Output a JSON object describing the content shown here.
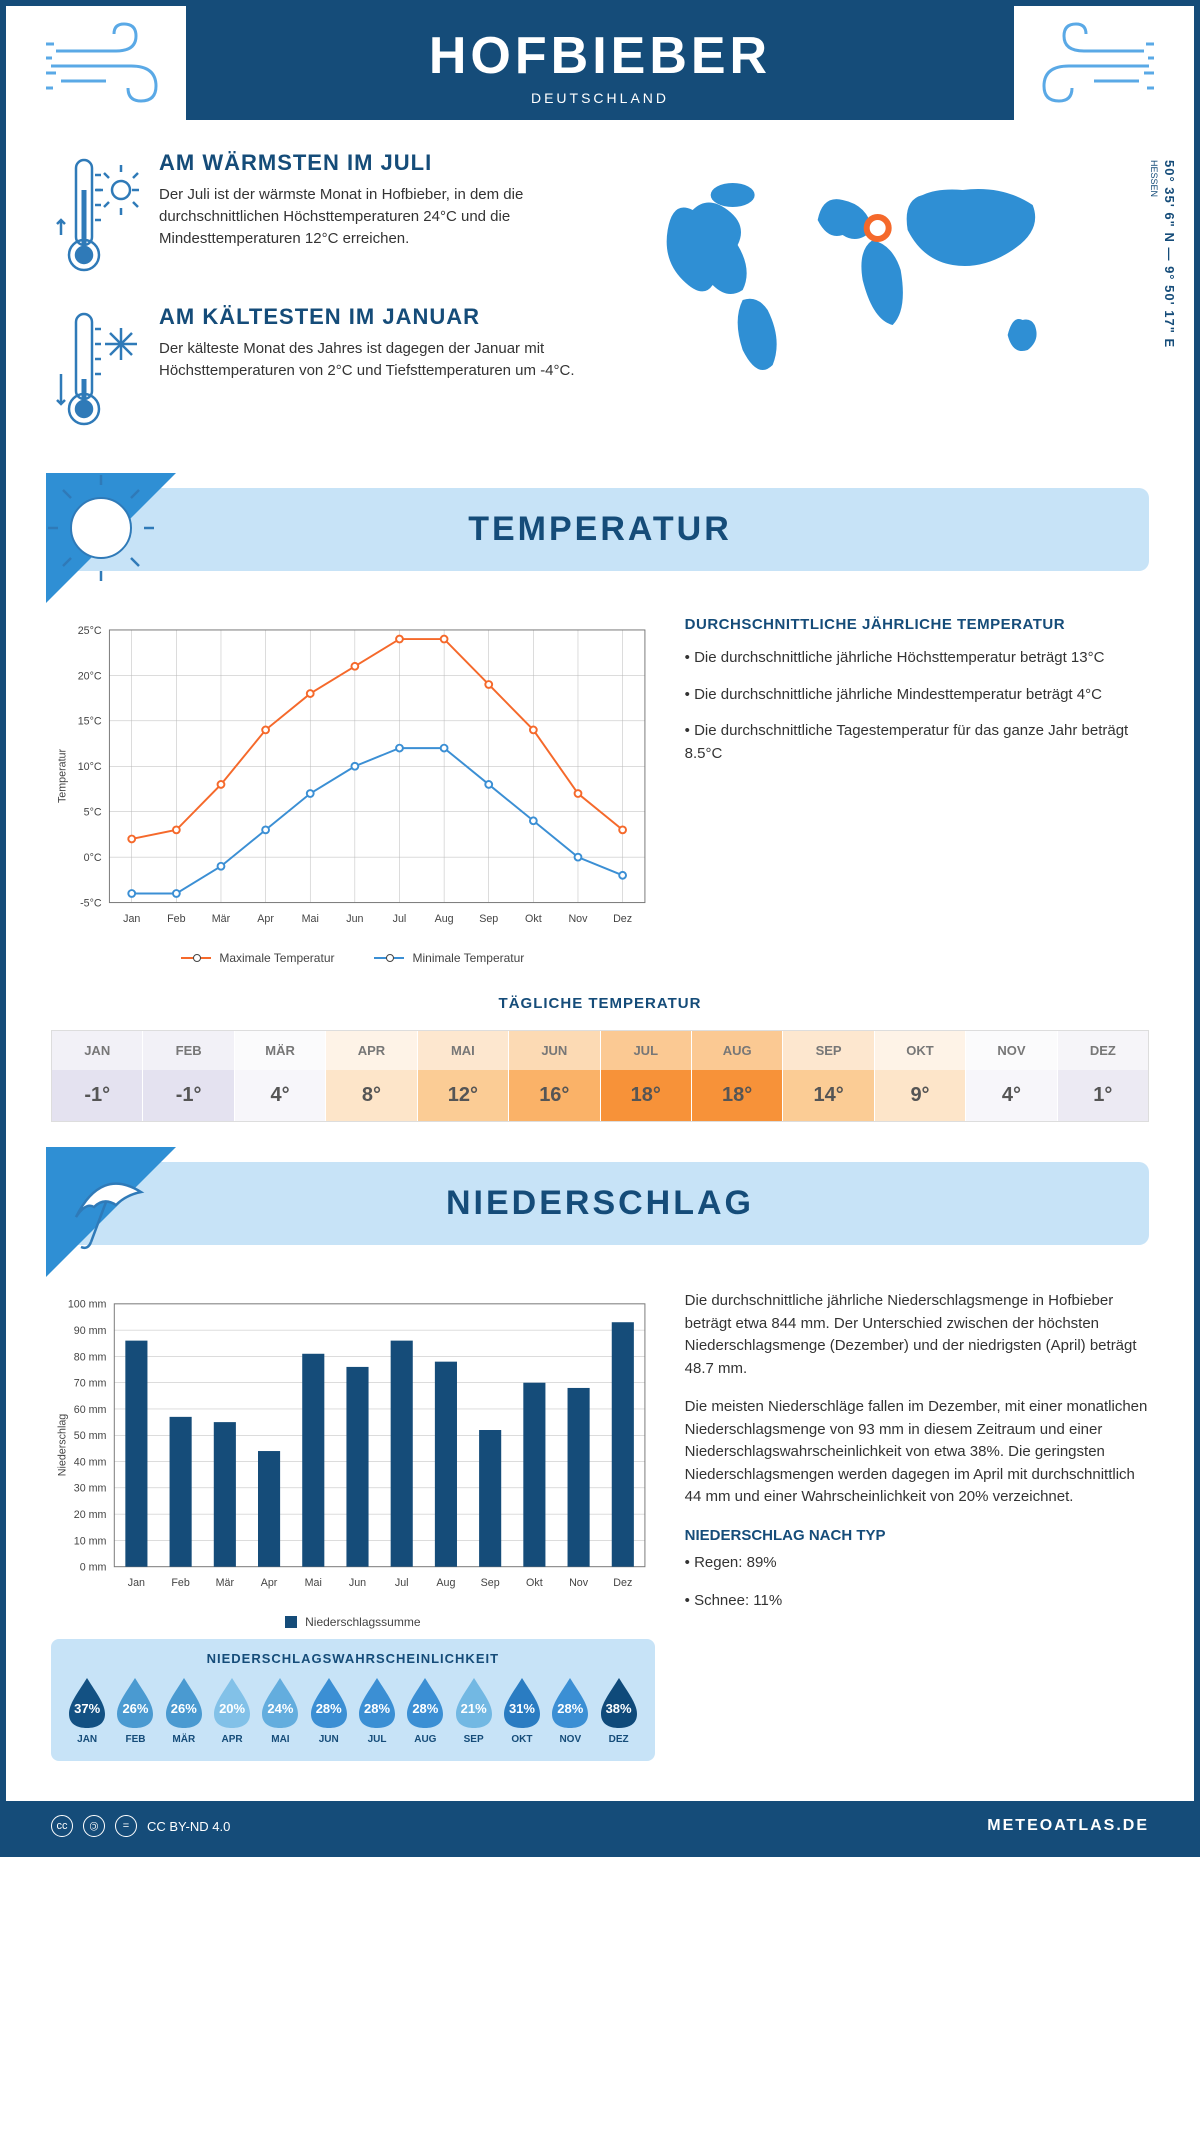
{
  "header": {
    "title": "HOFBIEBER",
    "country": "DEUTSCHLAND"
  },
  "coords": {
    "lat": "50° 35' 6\" N",
    "lon": "9° 50' 17\" E",
    "region": "HESSEN"
  },
  "warmest": {
    "title": "AM WÄRMSTEN IM JULI",
    "text": "Der Juli ist der wärmste Monat in Hofbieber, in dem die durchschnittlichen Höchsttemperaturen 24°C und die Mindesttemperaturen 12°C erreichen."
  },
  "coldest": {
    "title": "AM KÄLTESTEN IM JANUAR",
    "text": "Der kälteste Monat des Jahres ist dagegen der Januar mit Höchsttemperaturen von 2°C und Tiefsttemperaturen um -4°C."
  },
  "temp_section": {
    "title": "TEMPERATUR",
    "info_title": "DURCHSCHNITTLICHE JÄHRLICHE TEMPERATUR",
    "bullet1": "• Die durchschnittliche jährliche Höchsttemperatur beträgt 13°C",
    "bullet2": "• Die durchschnittliche jährliche Mindesttemperatur beträgt 4°C",
    "bullet3": "• Die durchschnittliche Tagestemperatur für das ganze Jahr beträgt 8.5°C",
    "ylabel": "Temperatur",
    "legend_max": "Maximale Temperatur",
    "legend_min": "Minimale Temperatur",
    "daily_title": "TÄGLICHE TEMPERATUR"
  },
  "months": [
    "Jan",
    "Feb",
    "Mär",
    "Apr",
    "Mai",
    "Jun",
    "Jul",
    "Aug",
    "Sep",
    "Okt",
    "Nov",
    "Dez"
  ],
  "months_upper": [
    "JAN",
    "FEB",
    "MÄR",
    "APR",
    "MAI",
    "JUN",
    "JUL",
    "AUG",
    "SEP",
    "OKT",
    "NOV",
    "DEZ"
  ],
  "temp_chart": {
    "max": [
      2,
      3,
      8,
      14,
      18,
      21,
      24,
      24,
      19,
      14,
      7,
      3
    ],
    "min": [
      -4,
      -4,
      -1,
      3,
      7,
      10,
      12,
      12,
      8,
      4,
      0,
      -2
    ],
    "ylim": [
      -5,
      25
    ],
    "yticks": [
      -5,
      0,
      5,
      10,
      15,
      20,
      25
    ],
    "ytick_labels": [
      "-5°C",
      "0°C",
      "5°C",
      "10°C",
      "15°C",
      "20°C",
      "25°C"
    ],
    "max_color": "#f5692b",
    "min_color": "#3b8fd4",
    "grid_color": "#b8b8b8"
  },
  "daily_temp": {
    "values": [
      "-1°",
      "-1°",
      "4°",
      "8°",
      "12°",
      "16°",
      "18°",
      "18°",
      "14°",
      "9°",
      "4°",
      "1°"
    ],
    "bg": [
      "#e4e2f0",
      "#e4e2f0",
      "#f7f6fa",
      "#fde5c9",
      "#fbcc95",
      "#fab268",
      "#f79239",
      "#f79239",
      "#fbcc95",
      "#fde5c9",
      "#f7f6fa",
      "#eceaf3"
    ],
    "header_bg": [
      "#f2f1f7",
      "#f2f1f7",
      "#fbfbfc",
      "#fef3e7",
      "#fde7cf",
      "#fcdab4",
      "#fbc993",
      "#fbc993",
      "#fde7cf",
      "#fef3e7",
      "#fbfbfc",
      "#f6f5f9"
    ]
  },
  "precip_section": {
    "title": "NIEDERSCHLAG",
    "ylabel": "Niederschlag",
    "legend": "Niederschlagssumme",
    "para1": "Die durchschnittliche jährliche Niederschlagsmenge in Hofbieber beträgt etwa 844 mm. Der Unterschied zwischen der höchsten Niederschlagsmenge (Dezember) und der niedrigsten (April) beträgt 48.7 mm.",
    "para2": "Die meisten Niederschläge fallen im Dezember, mit einer monatlichen Niederschlagsmenge von 93 mm in diesem Zeitraum und einer Niederschlagswahrscheinlichkeit von etwa 38%. Die geringsten Niederschlagsmengen werden dagegen im April mit durchschnittlich 44 mm und einer Wahrscheinlichkeit von 20% verzeichnet.",
    "type_title": "NIEDERSCHLAG NACH TYP",
    "type1": "• Regen: 89%",
    "type2": "• Schnee: 11%"
  },
  "precip_chart": {
    "values": [
      86,
      57,
      55,
      44,
      81,
      76,
      86,
      78,
      52,
      70,
      68,
      93
    ],
    "ylim": [
      0,
      100
    ],
    "yticks": [
      0,
      10,
      20,
      30,
      40,
      50,
      60,
      70,
      80,
      90,
      100
    ],
    "ytick_labels": [
      "0 mm",
      "10 mm",
      "20 mm",
      "30 mm",
      "40 mm",
      "50 mm",
      "60 mm",
      "70 mm",
      "80 mm",
      "90 mm",
      "100 mm"
    ],
    "bar_color": "#154c79",
    "grid_color": "#b8b8b8"
  },
  "probability": {
    "title": "NIEDERSCHLAGSWAHRSCHEINLICHKEIT",
    "values": [
      "37%",
      "26%",
      "26%",
      "20%",
      "24%",
      "28%",
      "28%",
      "28%",
      "21%",
      "31%",
      "28%",
      "38%"
    ],
    "colors": [
      "#135183",
      "#4a9ad1",
      "#4a9ad1",
      "#82c1e8",
      "#63adde",
      "#3b8fd4",
      "#3b8fd4",
      "#3b8fd4",
      "#72b8e3",
      "#2a7cc2",
      "#3b8fd4",
      "#0f4a7a"
    ]
  },
  "footer": {
    "license": "CC BY-ND 4.0",
    "site": "METEOATLAS.DE"
  },
  "colors": {
    "brand": "#154c79",
    "lightblue": "#c7e3f7",
    "icon_stroke": "#2f7ab8"
  }
}
